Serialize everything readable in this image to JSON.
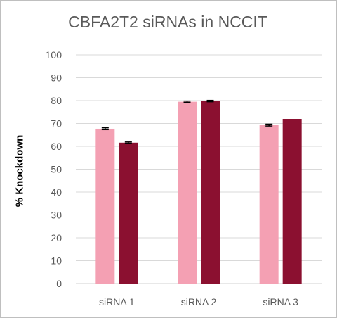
{
  "chart_data": {
    "type": "bar",
    "title": "CBFA2T2 siRNAs in NCCIT",
    "ylabel": "% Knockdown",
    "xlabel": "",
    "categories": [
      "siRNA 1",
      "siRNA 2",
      "siRNA 3"
    ],
    "ylim": [
      0,
      100
    ],
    "yticks": [
      0,
      10,
      20,
      30,
      40,
      50,
      60,
      70,
      80,
      90,
      100
    ],
    "grid": true,
    "legend": "none",
    "series": [
      {
        "values": [
          67.7,
          79.5,
          69.3
        ],
        "errors": [
          0.4,
          0.3,
          0.4
        ],
        "color": "#f4a0b3"
      },
      {
        "values": [
          61.6,
          79.8,
          72.0
        ],
        "errors": [
          0.3,
          0.3,
          0.0
        ],
        "color": "#8b1030"
      }
    ],
    "colors": {
      "grid": "#d9d9d9",
      "error_bar": "#000000",
      "tick_text": "#595959"
    }
  }
}
